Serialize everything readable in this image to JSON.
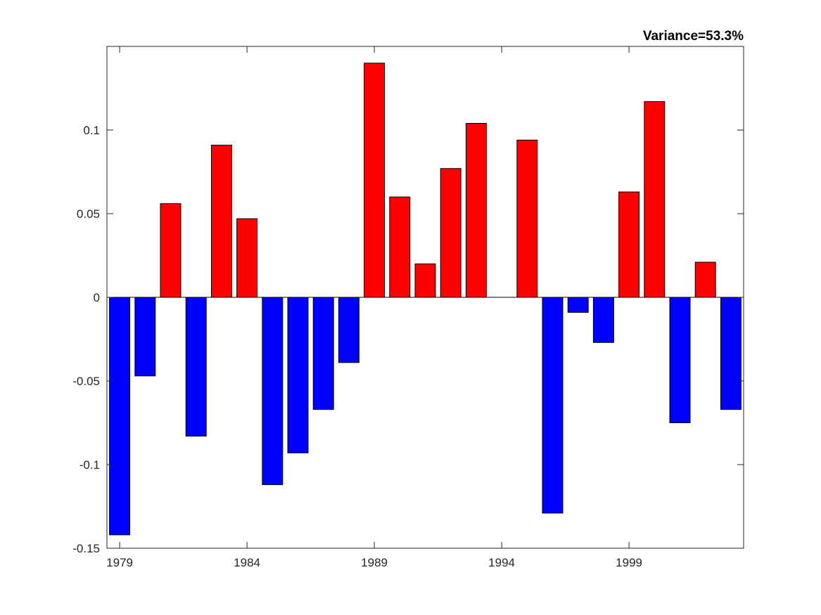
{
  "chart_data": {
    "type": "bar",
    "title": "Variance=53.3%",
    "xlabel": "",
    "ylabel": "",
    "x": [
      1979,
      1980,
      1981,
      1982,
      1983,
      1984,
      1985,
      1986,
      1987,
      1988,
      1989,
      1990,
      1991,
      1992,
      1993,
      1994,
      1995,
      1996,
      1997,
      1998,
      1999,
      2000,
      2001,
      2002,
      2003
    ],
    "values": [
      -0.142,
      -0.047,
      0.056,
      -0.083,
      0.091,
      0.047,
      -0.112,
      -0.093,
      -0.067,
      -0.039,
      0.14,
      0.06,
      0.02,
      0.077,
      0.104,
      0.0,
      0.094,
      -0.129,
      -0.009,
      -0.027,
      0.063,
      0.117,
      -0.075,
      0.021,
      -0.067
    ],
    "xlim": [
      1978.5,
      2003.5
    ],
    "ylim": [
      -0.15,
      0.15
    ],
    "xticks": [
      1979,
      1984,
      1989,
      1994,
      1999
    ],
    "xtick_labels": [
      "1979",
      "1984",
      "1989",
      "1994",
      "1999"
    ],
    "yticks": [
      -0.15,
      -0.1,
      -0.05,
      0,
      0.05,
      0.1
    ],
    "ytick_labels": [
      "-0.15",
      "-0.1",
      "-0.05",
      "0",
      "0.05",
      "0.1"
    ],
    "positive_color": "#ff0000",
    "negative_color": "#0000ff",
    "edge_color": "#000000",
    "grid": false,
    "legend": false
  }
}
